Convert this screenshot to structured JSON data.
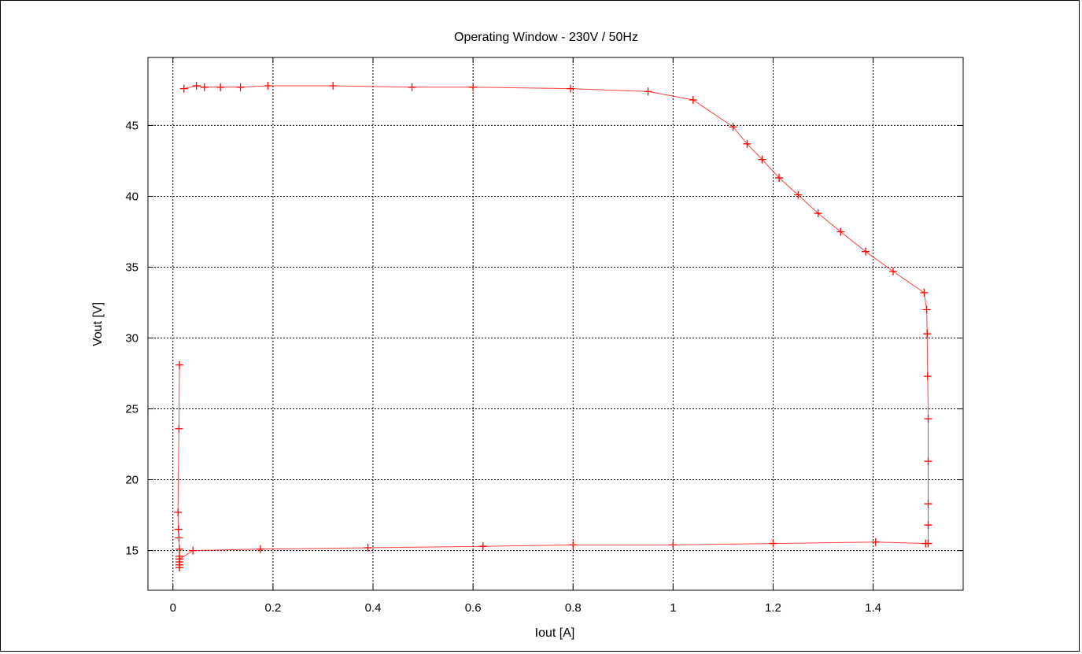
{
  "chart_data": {
    "type": "line",
    "title": "Operating Window - 230V / 50Hz",
    "xlabel": "Iout [A]",
    "ylabel": "Vout [V]",
    "xlim": [
      -0.05,
      1.58
    ],
    "ylim": [
      12.2,
      49.8
    ],
    "xticks": [
      0,
      0.2,
      0.4,
      0.6,
      0.8,
      1,
      1.2,
      1.4
    ],
    "xtick_labels": [
      "0",
      "0.2",
      "0.4",
      "0.6",
      "0.8",
      "1",
      "1.2",
      "1.4"
    ],
    "yticks": [
      15,
      20,
      25,
      30,
      35,
      40,
      45
    ],
    "ytick_labels": [
      "15",
      "20",
      "25",
      "30",
      "35",
      "40",
      "45"
    ],
    "grid": true,
    "series": [
      {
        "color": "#ff0000",
        "marker": "plus",
        "x": [
          0.013,
          0.012,
          0.01,
          0.011,
          0.012,
          0.013,
          0.013,
          0.013,
          0.013,
          0.013,
          0.013,
          0.013,
          0.04,
          0.175,
          0.39,
          0.62,
          0.8,
          1.0,
          1.2,
          1.405,
          1.505,
          1.51,
          1.51,
          1.51,
          1.51,
          1.51,
          1.509,
          1.508,
          1.508,
          1.507,
          1.502,
          1.44,
          1.385,
          1.335,
          1.29,
          1.25,
          1.212,
          1.178,
          1.148,
          1.12,
          1.04,
          0.95,
          0.795,
          0.6,
          0.478,
          0.32,
          0.19,
          0.135,
          0.095,
          0.063,
          0.047,
          0.022
        ],
        "y": [
          28.1,
          23.6,
          17.7,
          16.5,
          15.9,
          15.1,
          14.6,
          14.4,
          14.2,
          14.0,
          13.8,
          14.4,
          15.0,
          15.1,
          15.2,
          15.3,
          15.4,
          15.4,
          15.5,
          15.6,
          15.5,
          15.5,
          16.8,
          18.3,
          21.3,
          24.3,
          27.3,
          30.3,
          30.3,
          32.0,
          33.2,
          34.7,
          36.1,
          37.5,
          38.8,
          40.1,
          41.3,
          42.6,
          43.7,
          44.9,
          46.8,
          47.4,
          47.6,
          47.7,
          47.7,
          47.8,
          47.8,
          47.7,
          47.7,
          47.7,
          47.8,
          47.6
        ]
      }
    ]
  }
}
